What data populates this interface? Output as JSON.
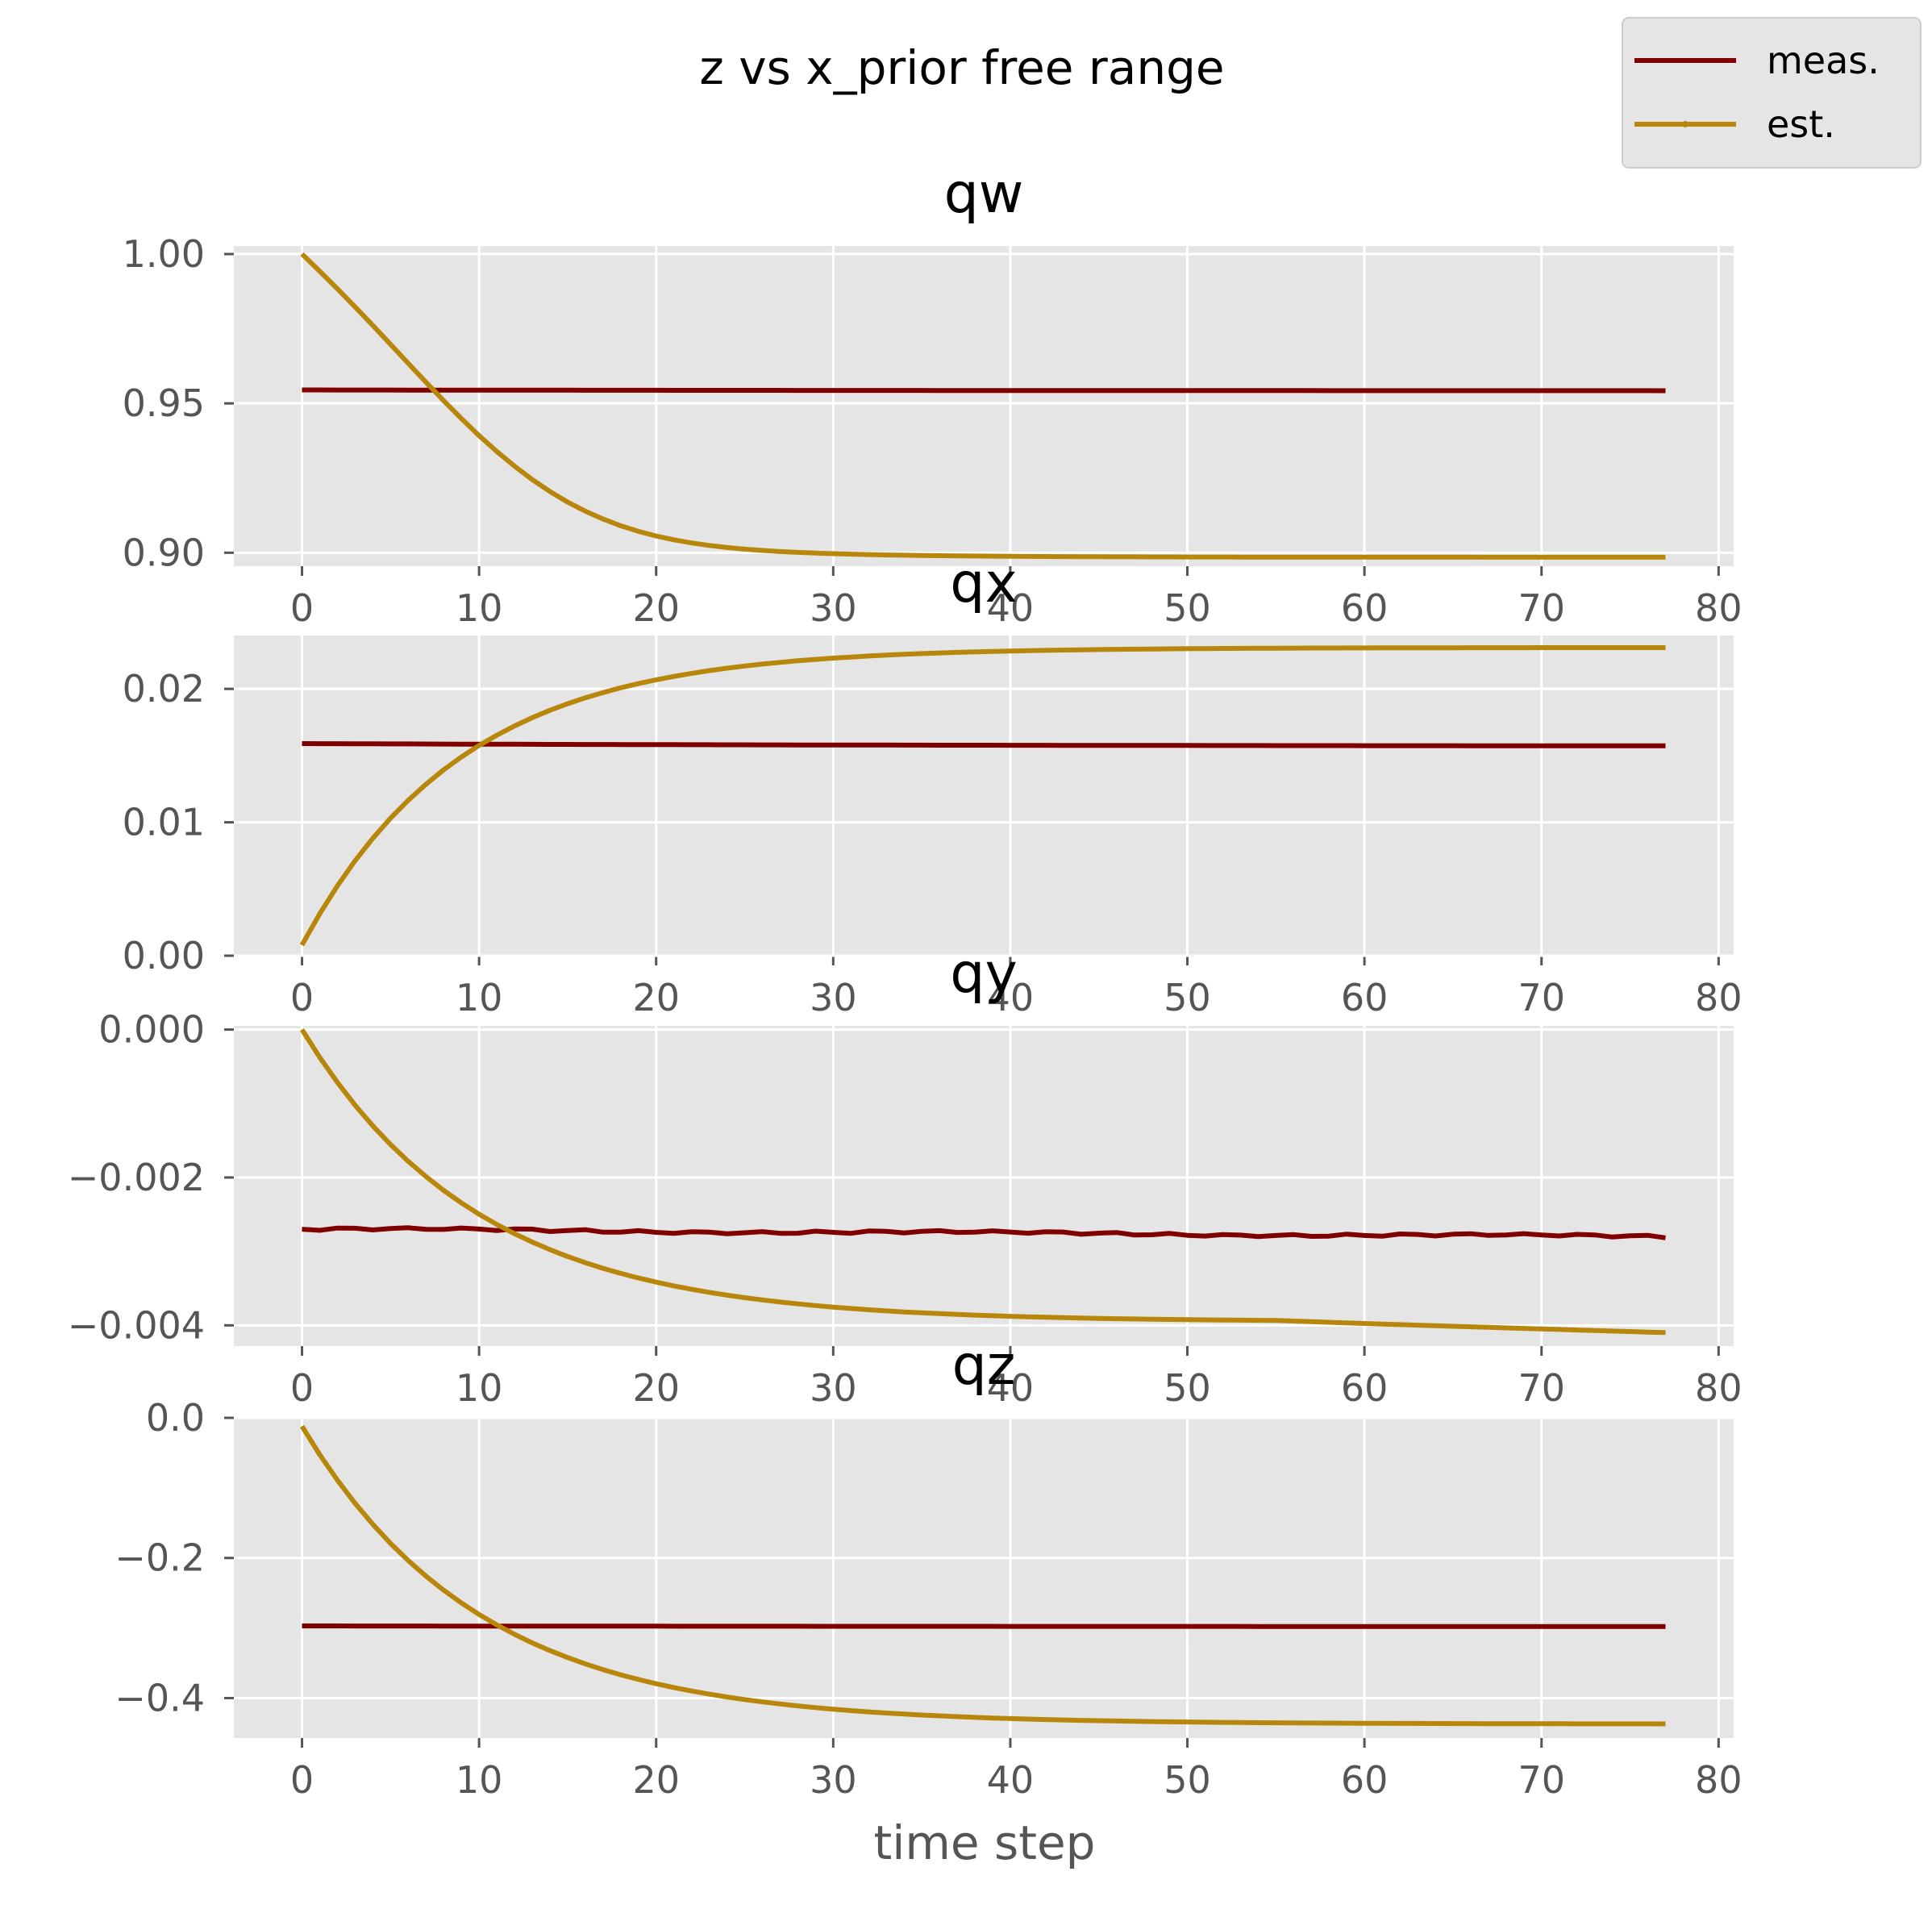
{
  "figure": {
    "title": "z vs x_prior free range",
    "xlabel": "time step"
  },
  "legend": {
    "placement": "top-right",
    "entries": [
      {
        "label": "meas.",
        "color": "#800000"
      },
      {
        "label": "est.",
        "color": "#b8860b"
      }
    ]
  },
  "colors": {
    "background": "#e5e5e5",
    "grid": "#ffffff",
    "meas": "#800000",
    "est": "#b8860b",
    "tick_text": "#555555"
  },
  "chart_data": [
    {
      "type": "line",
      "title": "qw",
      "x": {
        "start": 0,
        "end": 77
      },
      "xlim": [
        -3.85,
        80.85
      ],
      "ylim": [
        0.8955,
        1.0027
      ],
      "xticks": [
        0,
        10,
        20,
        30,
        40,
        50,
        60,
        70,
        80
      ],
      "xtick_labels": [
        "0",
        "10",
        "20",
        "30",
        "40",
        "50",
        "60",
        "70",
        "80"
      ],
      "yticks": [
        0.9,
        0.95,
        1.0
      ],
      "ytick_labels": [
        "0.90",
        "0.95",
        "1.00"
      ],
      "grid": true,
      "series": [
        {
          "name": "meas.",
          "color": "#800000",
          "kind": "exp",
          "y0": 0.9545,
          "yinf": 0.9542,
          "tau": 40
        },
        {
          "name": "est.",
          "color": "#b8860b",
          "kind": "sigmoid",
          "y0": 1.0,
          "yinf": 0.8985,
          "k": 0.02,
          "tau": 8
        }
      ]
    },
    {
      "type": "line",
      "title": "qx",
      "x": {
        "start": 0,
        "end": 77
      },
      "xlim": [
        -3.85,
        80.85
      ],
      "ylim": [
        0.0,
        0.024
      ],
      "xticks": [
        0,
        10,
        20,
        30,
        40,
        50,
        60,
        70,
        80
      ],
      "xtick_labels": [
        "0",
        "10",
        "20",
        "30",
        "40",
        "50",
        "60",
        "70",
        "80"
      ],
      "yticks": [
        0.0,
        0.01,
        0.02
      ],
      "ytick_labels": [
        "0.00",
        "0.01",
        "0.02"
      ],
      "grid": true,
      "series": [
        {
          "name": "meas.",
          "color": "#800000",
          "kind": "exp",
          "y0": 0.0159,
          "yinf": 0.0157,
          "tau": 40
        },
        {
          "name": "est.",
          "color": "#b8860b",
          "kind": "exp",
          "y0": 0.0008,
          "yinf": 0.0231,
          "tau": 9
        }
      ]
    },
    {
      "type": "line",
      "title": "qy",
      "x": {
        "start": 0,
        "end": 77
      },
      "xlim": [
        -3.85,
        80.85
      ],
      "ylim": [
        -0.00428,
        5e-05
      ],
      "xticks": [
        0,
        10,
        20,
        30,
        40,
        50,
        60,
        70,
        80
      ],
      "xtick_labels": [
        "0",
        "10",
        "20",
        "30",
        "40",
        "50",
        "60",
        "70",
        "80"
      ],
      "yticks": [
        -0.004,
        -0.002,
        0.0
      ],
      "ytick_labels": [
        "−0.004",
        "−0.002",
        "0.000"
      ],
      "grid": true,
      "series": [
        {
          "name": "meas.",
          "color": "#800000",
          "kind": "linear",
          "y0": -0.0027,
          "y1": -0.0028,
          "wobble": 3e-05
        },
        {
          "name": "est.",
          "color": "#b8860b",
          "kind": "exp",
          "y0": 0.0,
          "yinf": -0.00395,
          "tau": 10,
          "late_drop_start": 55,
          "late_drop": -0.00015
        }
      ]
    },
    {
      "type": "line",
      "title": "qz",
      "x": {
        "start": 0,
        "end": 77
      },
      "xlim": [
        -3.85,
        80.85
      ],
      "ylim": [
        -0.457,
        0.0
      ],
      "xticks": [
        0,
        10,
        20,
        30,
        40,
        50,
        60,
        70,
        80
      ],
      "xtick_labels": [
        "0",
        "10",
        "20",
        "30",
        "40",
        "50",
        "60",
        "70",
        "80"
      ],
      "yticks": [
        -0.4,
        -0.2,
        0.0
      ],
      "ytick_labels": [
        "−0.4",
        "−0.2",
        "0.0"
      ],
      "grid": true,
      "series": [
        {
          "name": "meas.",
          "color": "#800000",
          "kind": "exp",
          "y0": -0.297,
          "yinf": -0.298,
          "tau": 40
        },
        {
          "name": "est.",
          "color": "#b8860b",
          "kind": "exp",
          "y0": -0.012,
          "yinf": -0.437,
          "tau": 10
        }
      ]
    }
  ]
}
